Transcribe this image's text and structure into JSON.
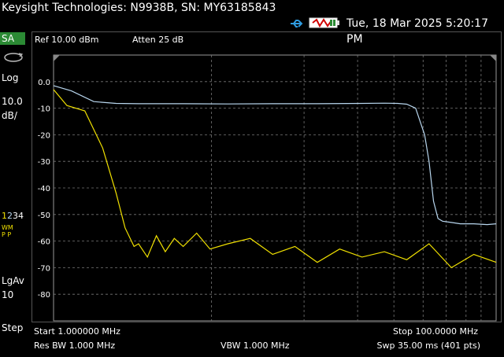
{
  "title": "Keysight Technologies: N9938B, SN: MY63185843",
  "status": {
    "usb_icon": "usb-icon",
    "battery_icon": "battery-icon",
    "datetime": "Tue, 18 Mar 2025 5:20:17 PM"
  },
  "left_panel": {
    "mode": "SA",
    "scale_type": "Log",
    "scale_value": "10.0",
    "scale_unit": "dB/",
    "traces": [
      "1",
      "2",
      "3",
      "4"
    ],
    "trace_mode_top": "WM",
    "trace_mode_bottom": "P P",
    "avg_label": "LgAv",
    "avg_count": "10",
    "step_label": "Step"
  },
  "header": {
    "ref": "Ref 10.00 dBm",
    "atten": "Atten 25 dB"
  },
  "footer": {
    "start": "Start 1.000000 MHz",
    "stop": "Stop 100.0000 MHz",
    "rbw": "Res BW 1.000 MHz",
    "vbw": "VBW 1.000 MHz",
    "sweep": "Swp 35.00 ms (401 pts)"
  },
  "colors": {
    "trace1": "#f0e000",
    "trace2": "#b8d6ee",
    "mode_bg": "#2b8a34",
    "grid": "#777777"
  },
  "chart_data": {
    "type": "line",
    "xlim": [
      1,
      100
    ],
    "xunit": "MHz",
    "ylim": [
      -90,
      10
    ],
    "yunit": "dBm",
    "y_ticks": [
      "0.0",
      "-10",
      "-20",
      "-30",
      "-40",
      "-50",
      "-60",
      "-70",
      "-80"
    ],
    "series": [
      {
        "trace": 2,
        "color": "#b8d6ee",
        "x": [
          1,
          5,
          10,
          15,
          20,
          30,
          40,
          50,
          60,
          70,
          75,
          78,
          80,
          82,
          84,
          85,
          86,
          87,
          88,
          90,
          92,
          95,
          98,
          100
        ],
        "y": [
          -1.5,
          -3.5,
          -7.5,
          -8.2,
          -8.3,
          -8.3,
          -8.4,
          -8.3,
          -8.3,
          -8.2,
          -8.1,
          -8.2,
          -8.5,
          -10,
          -20,
          -30,
          -45,
          -51.5,
          -52.5,
          -53,
          -53.5,
          -53.5,
          -53.8,
          -53.5
        ]
      },
      {
        "trace": 1,
        "color": "#f0e000",
        "x": [
          1,
          4,
          8,
          12,
          15,
          17,
          19,
          20,
          22,
          24,
          26,
          28,
          30,
          33,
          36,
          40,
          45,
          50,
          55,
          60,
          65,
          70,
          75,
          80,
          85,
          90,
          95,
          100
        ],
        "y": [
          -3,
          -9,
          -11,
          -25,
          -42,
          -55,
          -62,
          -61,
          -66,
          -58,
          -64,
          -59,
          -62,
          -57,
          -63,
          -61,
          -59,
          -65,
          -62,
          -68,
          -63,
          -66,
          -64,
          -67,
          -61,
          -70,
          -65,
          -68
        ]
      }
    ]
  }
}
